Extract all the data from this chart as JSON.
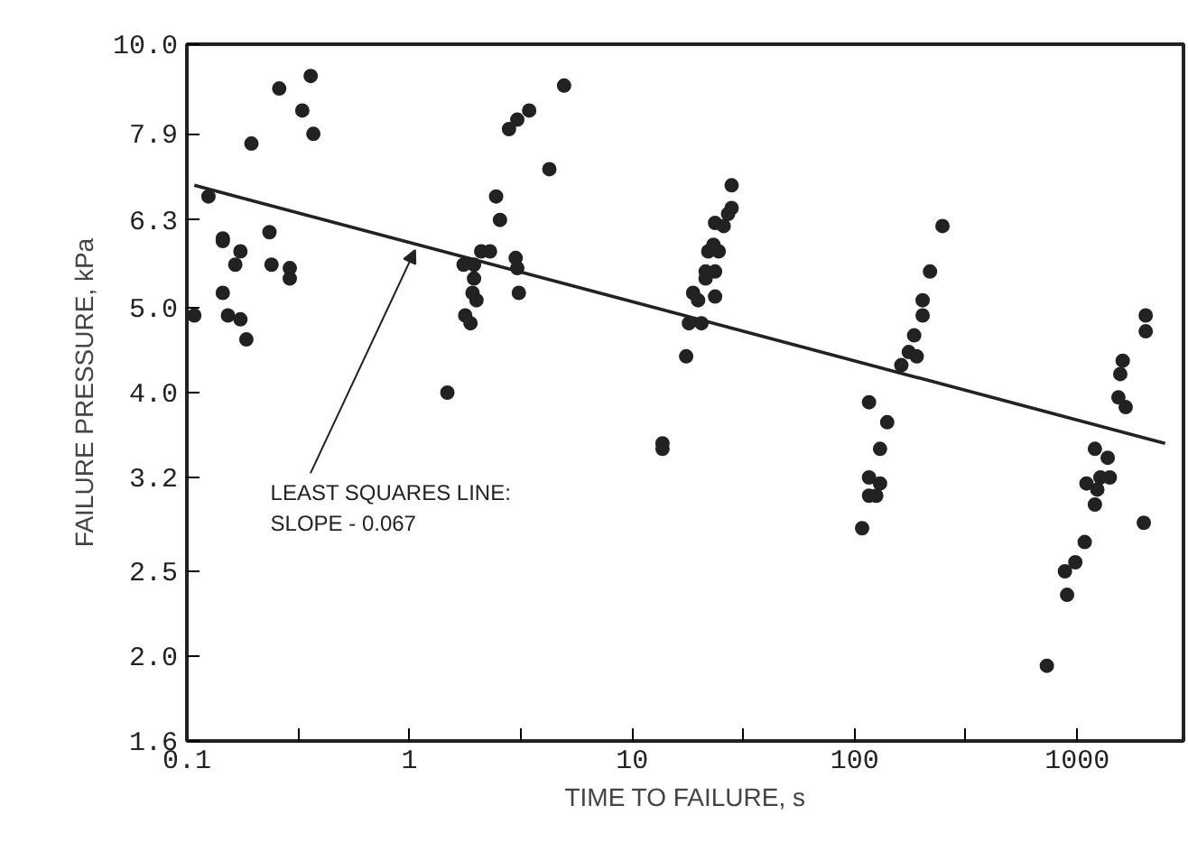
{
  "chart_data": {
    "type": "scatter",
    "xlabel": "TIME TO FAILURE, s",
    "ylabel": "FAILURE PRESSURE, kPa",
    "log": "xy",
    "xlim": [
      0.1,
      3000
    ],
    "ylim": [
      1.6,
      10.0
    ],
    "xticks": [
      0.1,
      {
        "value": 0.316,
        "label": null
      },
      1,
      {
        "value": 3.16,
        "label": null
      },
      10,
      {
        "value": 31.6,
        "label": null
      },
      100,
      {
        "value": 316,
        "label": null
      },
      1000
    ],
    "yticks": [
      1.6,
      {
        "value": 2.0,
        "label": "2.0"
      },
      2.5,
      3.2,
      {
        "value": 4.0,
        "label": "4.0"
      },
      {
        "value": 5.0,
        "label": "5.0"
      },
      6.3,
      7.9,
      {
        "value": 10.0,
        "label": "10.0"
      }
    ],
    "grid": false,
    "annotations": [
      {
        "text": "LEAST SQUARES LINE:\nSLOPE - 0.067",
        "x": 1.06,
        "y": 5.82
      }
    ],
    "series": [
      {
        "marker": "circle",
        "color": "#222222",
        "x": [
          0.108,
          0.125,
          0.145,
          0.145,
          0.174,
          0.165,
          0.145,
          0.153,
          0.174,
          0.185,
          0.195,
          0.235,
          0.24,
          0.26,
          0.29,
          0.29,
          0.33,
          0.36,
          0.37,
          1.48,
          1.75,
          1.95,
          2.1,
          2.3,
          1.78,
          1.88,
          1.95,
          1.92,
          2.0,
          2.45,
          2.55,
          3.0,
          3.05,
          3.1,
          2.8,
          3.05,
          3.45,
          4.25,
          4.95,
          17.5,
          18,
          20.5,
          18.8,
          19.8,
          23.6,
          21.4,
          21.4,
          23.6,
          22,
          23.2,
          24.5,
          23.6,
          25.8,
          27,
          28,
          28,
          13.7,
          13.7,
          116,
          140,
          162,
          175,
          190,
          185,
          202,
          202,
          218,
          248,
          130,
          116,
          130,
          116,
          125,
          108,
          1530,
          1650,
          1560,
          1600,
          2030,
          2030,
          1200,
          1370,
          1270,
          1400,
          1100,
          1230,
          1200,
          1990,
          1080,
          980,
          880,
          900,
          730
        ],
        "values": [
          4.9,
          6.7,
          6.0,
          5.96,
          5.8,
          5.6,
          5.2,
          4.9,
          4.85,
          4.6,
          7.7,
          6.1,
          5.6,
          8.9,
          5.55,
          5.4,
          8.4,
          9.2,
          7.9,
          4.0,
          5.6,
          5.6,
          5.8,
          5.8,
          4.9,
          4.8,
          5.4,
          5.2,
          5.1,
          6.7,
          6.3,
          5.7,
          5.55,
          5.2,
          8.0,
          8.2,
          8.4,
          7.2,
          8.97,
          4.4,
          4.8,
          4.8,
          5.2,
          5.1,
          5.15,
          5.4,
          5.5,
          5.5,
          5.8,
          5.9,
          5.8,
          6.25,
          6.2,
          6.4,
          6.5,
          6.9,
          3.5,
          3.45,
          3.9,
          3.7,
          4.3,
          4.45,
          4.4,
          4.65,
          4.9,
          5.1,
          5.5,
          6.2,
          3.45,
          3.2,
          3.15,
          3.05,
          3.05,
          2.8,
          3.95,
          3.85,
          4.2,
          4.35,
          4.9,
          4.7,
          3.45,
          3.37,
          3.2,
          3.2,
          3.15,
          3.1,
          2.98,
          2.84,
          2.7,
          2.56,
          2.5,
          2.35,
          1.95
        ]
      },
      {
        "type": "line",
        "marker": "none",
        "color": "#222222",
        "x": [
          0.108,
          2480
        ],
        "values": [
          6.9,
          3.5
        ]
      }
    ]
  }
}
